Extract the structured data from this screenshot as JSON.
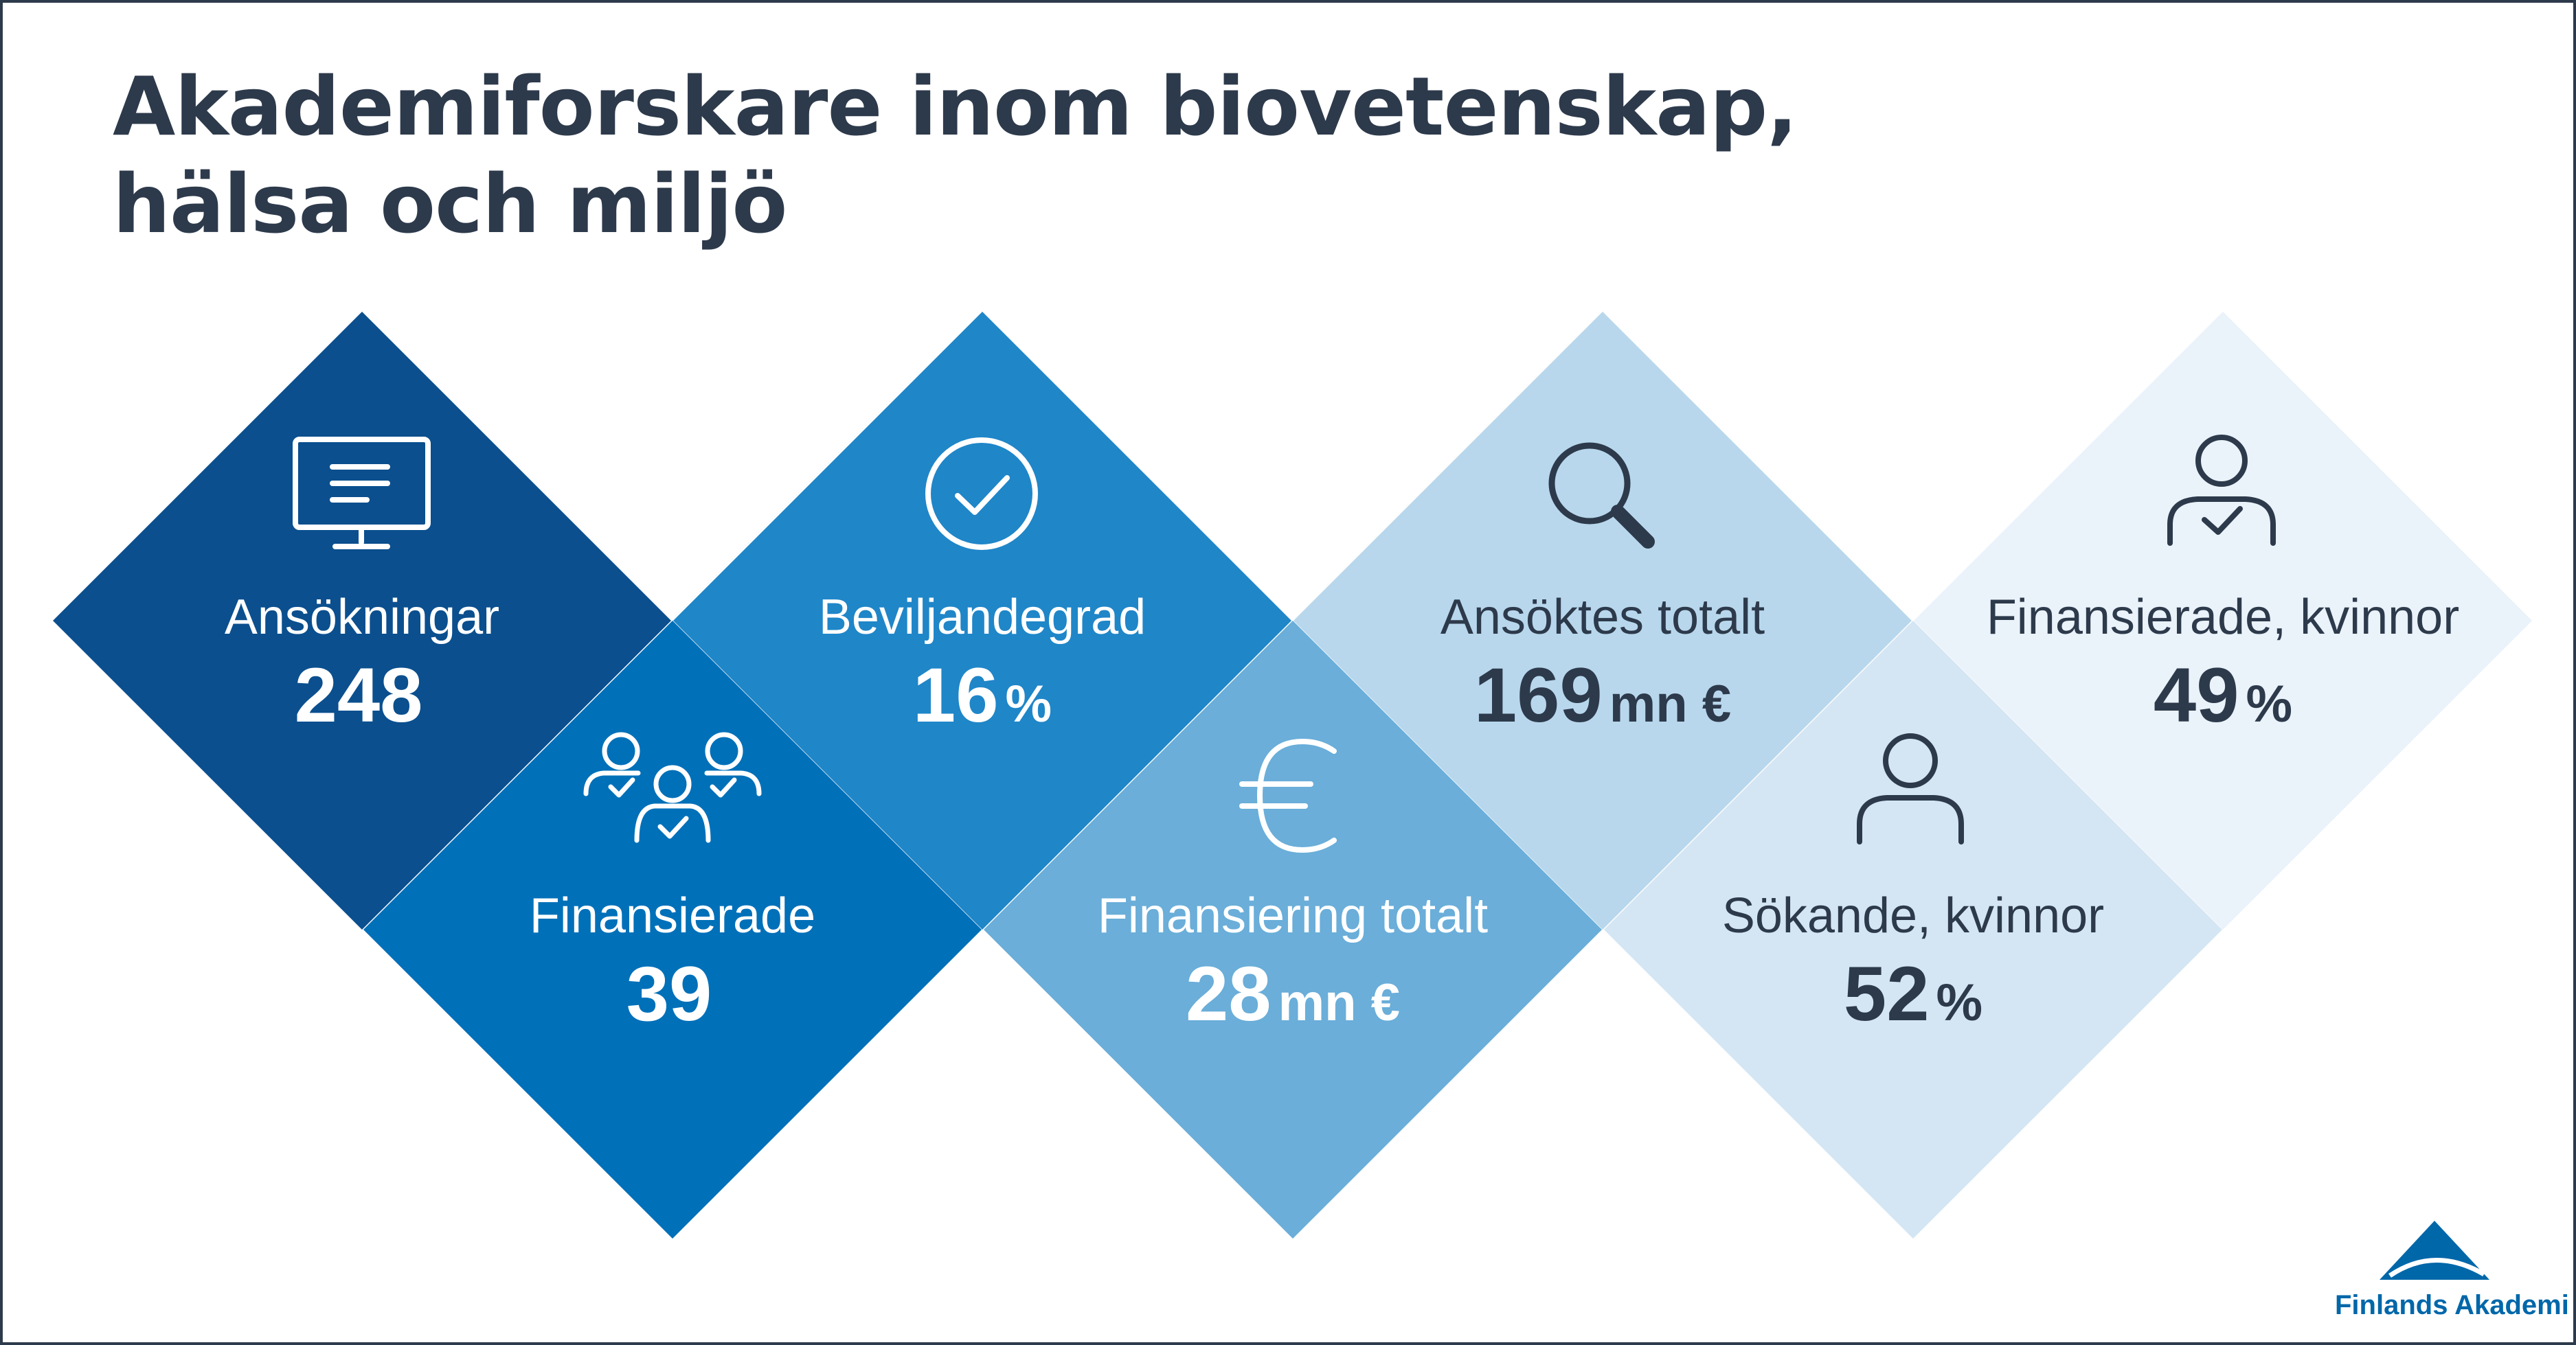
{
  "title": {
    "line1": "Akademiforskare inom biovetenskap,",
    "line2": "hälsa och miljö"
  },
  "stats": [
    {
      "id": "applications",
      "label": "Ansökningar",
      "value": "248",
      "unit": "",
      "icon": "monitor-icon",
      "color": "#0b4f8e",
      "text_color": "#ffffff"
    },
    {
      "id": "funded",
      "label": "Finansierade",
      "value": "39",
      "unit": "",
      "icon": "group-check-icon",
      "color": "#0070b9",
      "text_color": "#ffffff"
    },
    {
      "id": "approval-rate",
      "label": "Beviljandegrad",
      "value": "16",
      "unit": "%",
      "icon": "check-circle-icon",
      "color": "#1f86c8",
      "text_color": "#ffffff"
    },
    {
      "id": "funding-total",
      "label": "Finansiering totalt",
      "value": "28",
      "unit": "mn €",
      "icon": "euro-icon",
      "color": "#6aaed9",
      "text_color": "#ffffff"
    },
    {
      "id": "applied-total",
      "label": "Ansöktes totalt",
      "value": "169",
      "unit": "mn €",
      "icon": "search-icon",
      "color": "#b8d7ec",
      "text_color": "#2d3a4b"
    },
    {
      "id": "applicants-women",
      "label": "Sökande, kvinnor",
      "value": "52",
      "unit": "%",
      "icon": "person-icon",
      "color": "#d4e6f3",
      "text_color": "#2d3a4b"
    },
    {
      "id": "funded-women",
      "label": "Finansierade, kvinnor",
      "value": "49",
      "unit": "%",
      "icon": "person-check-icon",
      "color": "#eaf2fa",
      "text_color": "#2d3a4b"
    }
  ],
  "logo": {
    "text": "Finlands Akademi",
    "color": "#0067a9"
  }
}
